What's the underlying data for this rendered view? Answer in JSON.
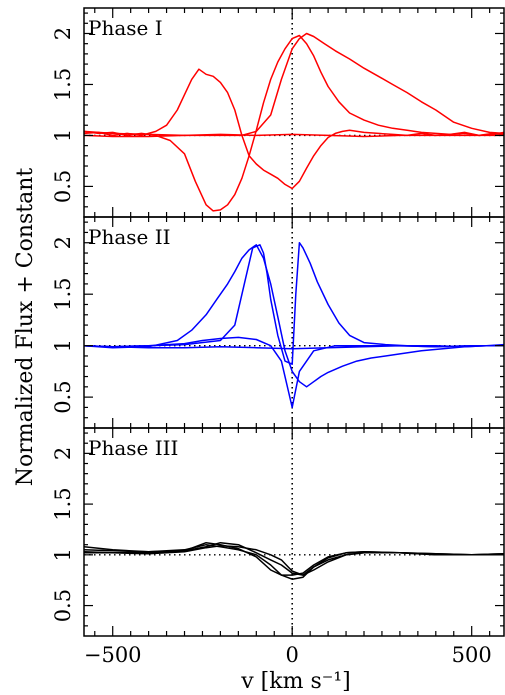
{
  "chart_data": {
    "type": "line",
    "title": "",
    "xlabel": "v [km s⁻¹]",
    "ylabel": "Normalized Flux + Constant",
    "xlim": [
      -580,
      590
    ],
    "ylim": [
      0.2,
      2.25
    ],
    "x_ticks": [
      -500,
      0,
      500
    ],
    "y_ticks": [
      0.5,
      1,
      1.5,
      2
    ],
    "reference_lines": {
      "vertical_x": 0,
      "horizontal_y": 1,
      "style": "dotted"
    },
    "panels": [
      {
        "label": "Phase I",
        "color": "#ff0000",
        "series": [
          {
            "x": [
              -580,
              -540,
              -500,
              -460,
              -420,
              -380,
              -340,
              -300,
              -270,
              -240,
              -220,
              -200,
              -180,
              -160,
              -140,
              -120,
              -100,
              -80,
              -60,
              -40,
              -20,
              0,
              20,
              40,
              60,
              80,
              100,
              130,
              160,
              200,
              240,
              280,
              320,
              360,
              400,
              440,
              480,
              520,
              560,
              590
            ],
            "y": [
              1.04,
              1.02,
              1.03,
              1.0,
              1.02,
              1.0,
              0.95,
              0.82,
              0.55,
              0.32,
              0.26,
              0.27,
              0.32,
              0.42,
              0.58,
              0.8,
              1.05,
              1.32,
              1.55,
              1.72,
              1.85,
              1.95,
              1.98,
              1.9,
              1.78,
              1.62,
              1.48,
              1.33,
              1.22,
              1.15,
              1.1,
              1.07,
              1.05,
              1.03,
              1.02,
              1.01,
              1.02,
              1.0,
              1.01,
              1.03
            ]
          },
          {
            "x": [
              -580,
              -540,
              -500,
              -460,
              -420,
              -380,
              -350,
              -320,
              -300,
              -280,
              -260,
              -240,
              -220,
              -200,
              -180,
              -160,
              -140,
              -120,
              -100,
              -80,
              -60,
              -40,
              -20,
              0,
              20,
              40,
              60,
              80,
              100,
              120,
              140,
              160,
              200,
              240,
              280,
              320,
              360,
              400,
              440,
              480,
              520,
              560,
              590
            ],
            "y": [
              1.02,
              1.03,
              1.0,
              1.02,
              1.0,
              1.04,
              1.1,
              1.25,
              1.4,
              1.55,
              1.65,
              1.6,
              1.58,
              1.52,
              1.42,
              1.25,
              1.0,
              0.8,
              0.72,
              0.66,
              0.62,
              0.58,
              0.52,
              0.48,
              0.55,
              0.68,
              0.8,
              0.9,
              0.98,
              1.02,
              1.04,
              1.05,
              1.03,
              1.02,
              1.01,
              1.0,
              1.02,
              1.0,
              1.01,
              1.03,
              1.0,
              1.02,
              1.01
            ]
          },
          {
            "x": [
              -580,
              -500,
              -400,
              -300,
              -200,
              -140,
              -100,
              -60,
              -30,
              0,
              20,
              40,
              60,
              90,
              120,
              160,
              200,
              240,
              280,
              320,
              360,
              400,
              450,
              500,
              550,
              590
            ],
            "y": [
              1.04,
              1.02,
              1.01,
              1.0,
              1.0,
              1.0,
              1.04,
              1.2,
              1.55,
              1.85,
              1.95,
              2.0,
              1.97,
              1.9,
              1.83,
              1.75,
              1.66,
              1.58,
              1.5,
              1.42,
              1.33,
              1.25,
              1.13,
              1.07,
              1.03,
              1.02
            ]
          },
          {
            "x": [
              -580,
              -500,
              -400,
              -300,
              -200,
              -100,
              0,
              100,
              200,
              300,
              400,
              500,
              590
            ],
            "y": [
              1.0,
              0.99,
              0.99,
              1.0,
              1.01,
              1.0,
              1.01,
              1.0,
              0.99,
              1.0,
              1.0,
              1.0,
              1.0
            ]
          }
        ]
      },
      {
        "label": "Phase II",
        "color": "#0000ff",
        "series": [
          {
            "x": [
              -580,
              -500,
              -400,
              -320,
              -280,
              -240,
              -210,
              -180,
              -160,
              -140,
              -120,
              -100,
              -80,
              -60,
              -40,
              -20,
              0,
              20,
              40,
              60,
              80,
              100,
              140,
              180,
              220,
              260,
              300,
              360,
              420,
              480,
              540,
              590
            ],
            "y": [
              1.0,
              0.98,
              0.99,
              1.05,
              1.15,
              1.3,
              1.45,
              1.6,
              1.72,
              1.85,
              1.93,
              1.98,
              1.85,
              1.6,
              1.28,
              0.95,
              0.75,
              0.65,
              0.6,
              0.65,
              0.7,
              0.74,
              0.8,
              0.85,
              0.88,
              0.9,
              0.92,
              0.95,
              0.97,
              0.99,
              1.0,
              1.01
            ]
          },
          {
            "x": [
              -580,
              -500,
              -400,
              -300,
              -200,
              -160,
              -130,
              -110,
              -90,
              -80,
              -70,
              -60,
              -40,
              -20,
              0,
              10,
              20,
              30,
              50,
              70,
              100,
              130,
              160,
              200,
              260,
              320,
              400,
              480,
              540,
              590
            ],
            "y": [
              1.0,
              0.99,
              1.0,
              1.01,
              1.05,
              1.2,
              1.65,
              1.95,
              1.98,
              1.9,
              1.7,
              1.45,
              1.1,
              0.85,
              0.82,
              1.5,
              2.0,
              1.95,
              1.8,
              1.62,
              1.4,
              1.22,
              1.1,
              1.03,
              1.01,
              1.0,
              1.0,
              0.99,
              1.0,
              1.0
            ]
          },
          {
            "x": [
              -580,
              -500,
              -400,
              -300,
              -250,
              -200,
              -150,
              -100,
              -60,
              -30,
              -10,
              0,
              20,
              60,
              120,
              200,
              300,
              400,
              500,
              590
            ],
            "y": [
              1.0,
              0.99,
              1.0,
              1.02,
              1.05,
              1.07,
              1.08,
              1.06,
              1.0,
              0.85,
              0.55,
              0.4,
              0.75,
              0.95,
              1.0,
              1.0,
              1.0,
              0.99,
              1.0,
              1.0
            ]
          },
          {
            "x": [
              -580,
              -500,
              -400,
              -300,
              -200,
              -100,
              0,
              100,
              200,
              300,
              400,
              500,
              590
            ],
            "y": [
              1.0,
              0.99,
              0.98,
              0.98,
              0.99,
              0.98,
              0.97,
              0.98,
              0.99,
              1.0,
              0.99,
              1.0,
              1.0
            ]
          }
        ]
      },
      {
        "label": "Phase III",
        "color": "#000000",
        "series": [
          {
            "x": [
              -580,
              -500,
              -400,
              -300,
              -240,
              -200,
              -150,
              -100,
              -60,
              -30,
              0,
              30,
              60,
              100,
              150,
              200,
              300,
              400,
              500,
              590
            ],
            "y": [
              1.05,
              1.04,
              1.03,
              1.05,
              1.1,
              1.08,
              1.05,
              1.0,
              0.9,
              0.8,
              0.76,
              0.78,
              0.88,
              0.97,
              1.02,
              1.03,
              1.02,
              1.01,
              1.0,
              1.0
            ]
          },
          {
            "x": [
              -580,
              -500,
              -400,
              -300,
              -240,
              -200,
              -150,
              -100,
              -60,
              -30,
              0,
              30,
              60,
              100,
              150,
              200,
              300,
              400,
              500,
              590
            ],
            "y": [
              1.08,
              1.05,
              1.03,
              1.04,
              1.12,
              1.1,
              1.06,
              0.98,
              0.85,
              0.8,
              0.8,
              0.82,
              0.9,
              0.98,
              1.02,
              1.03,
              1.02,
              1.0,
              1.0,
              1.01
            ]
          },
          {
            "x": [
              -580,
              -500,
              -400,
              -300,
              -240,
              -200,
              -150,
              -100,
              -60,
              -30,
              0,
              30,
              60,
              100,
              150,
              200,
              300,
              400,
              500,
              590
            ],
            "y": [
              1.03,
              1.02,
              1.02,
              1.04,
              1.08,
              1.12,
              1.1,
              1.02,
              0.95,
              0.9,
              0.82,
              0.8,
              0.85,
              0.93,
              1.0,
              1.02,
              1.02,
              1.0,
              1.0,
              1.0
            ]
          },
          {
            "x": [
              -580,
              -500,
              -400,
              -300,
              -240,
              -200,
              -150,
              -100,
              -60,
              -30,
              0,
              30,
              60,
              100,
              150,
              200,
              300,
              400,
              500,
              590
            ],
            "y": [
              1.02,
              1.02,
              1.01,
              1.03,
              1.07,
              1.09,
              1.08,
              1.05,
              1.0,
              0.95,
              0.84,
              0.8,
              0.88,
              0.95,
              1.0,
              1.02,
              1.02,
              1.01,
              1.0,
              1.01
            ]
          }
        ]
      }
    ]
  }
}
